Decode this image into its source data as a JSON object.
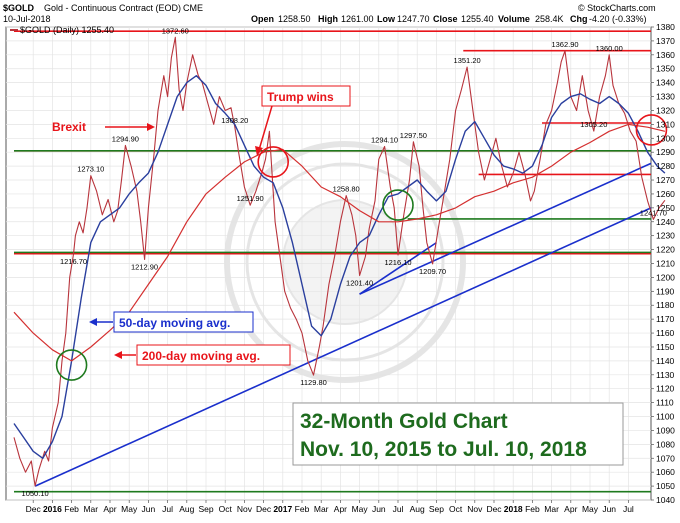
{
  "header": {
    "symbol": "$GOLD",
    "name": "Gold - Continuous Contract (EOD)",
    "exchange": "CME",
    "date": "10-Jul-2018",
    "legend": "$GOLD (Daily) 1255.40",
    "open_label": "Open",
    "open": "1258.50",
    "high_label": "High",
    "high": "1261.00",
    "low_label": "Low",
    "low": "1247.70",
    "close_label": "Close",
    "close": "1255.40",
    "volume_label": "Volume",
    "volume": "258.4K",
    "chg_label": "Chg",
    "chg": "-4.20 (-0.33%)",
    "brand": "© StockCharts.com"
  },
  "annotations": {
    "brexit": "Brexit",
    "trump": "Trump wins",
    "ma50": "50-day moving avg.",
    "ma200": "200-day moving avg.",
    "title_line1": "32-Month Gold Chart",
    "title_line2": "Nov. 10, 2015 to Jul. 10, 2018"
  },
  "colors": {
    "price": "#b8343c",
    "ma50": "#2a3f9e",
    "ma200": "#d43030",
    "red_line": "#e8141a",
    "green_line": "#1e7a1e",
    "blue_trend": "#1a2fcc",
    "annotation_green": "#1e6b1e"
  },
  "chart_data": {
    "type": "line",
    "ylim": [
      1040,
      1380
    ],
    "y_ticks": [
      1040,
      1050,
      1060,
      1070,
      1080,
      1090,
      1100,
      1110,
      1120,
      1130,
      1140,
      1150,
      1160,
      1170,
      1180,
      1190,
      1200,
      1210,
      1220,
      1230,
      1240,
      1250,
      1260,
      1270,
      1280,
      1290,
      1300,
      1310,
      1320,
      1330,
      1340,
      1350,
      1360,
      1370,
      1380
    ],
    "x_ticks": [
      "Dec",
      "2016",
      "Feb",
      "Mar",
      "Apr",
      "May",
      "Jun",
      "Jul",
      "Aug",
      "Sep",
      "Oct",
      "Nov",
      "Dec",
      "2017",
      "Feb",
      "Mar",
      "Apr",
      "May",
      "Jun",
      "Jul",
      "Aug",
      "Sep",
      "Oct",
      "Nov",
      "Dec",
      "2018",
      "Feb",
      "Mar",
      "Apr",
      "May",
      "Jun",
      "Jul"
    ],
    "x_tick_month_index": [
      1,
      2,
      3,
      4,
      5,
      6,
      7,
      8,
      9,
      10,
      11,
      12,
      13,
      14,
      15,
      16,
      17,
      18,
      19,
      20,
      21,
      22,
      23,
      24,
      25,
      26,
      27,
      28,
      29,
      30,
      31,
      32
    ],
    "series": [
      {
        "points": [
          [
            0,
            1085
          ],
          [
            0.3,
            1070
          ],
          [
            0.6,
            1060
          ],
          [
            0.9,
            1068
          ],
          [
            1.1,
            1050.1
          ],
          [
            1.3,
            1062
          ],
          [
            1.6,
            1075
          ],
          [
            1.8,
            1068
          ],
          [
            2.0,
            1092
          ],
          [
            2.3,
            1110
          ],
          [
            2.5,
            1140
          ],
          [
            2.7,
            1160
          ],
          [
            2.9,
            1200
          ],
          [
            3.1,
            1216.7
          ],
          [
            3.2,
            1230
          ],
          [
            3.4,
            1240
          ],
          [
            3.6,
            1232
          ],
          [
            3.8,
            1250
          ],
          [
            4.0,
            1273.1
          ],
          [
            4.3,
            1262
          ],
          [
            4.6,
            1245
          ],
          [
            4.9,
            1256
          ],
          [
            5.2,
            1240
          ],
          [
            5.4,
            1248
          ],
          [
            5.6,
            1270
          ],
          [
            5.8,
            1294.9
          ],
          [
            6.1,
            1280
          ],
          [
            6.4,
            1262
          ],
          [
            6.6,
            1240
          ],
          [
            6.8,
            1212.9
          ],
          [
            7.0,
            1250
          ],
          [
            7.3,
            1290
          ],
          [
            7.5,
            1320
          ],
          [
            7.8,
            1345
          ],
          [
            8.0,
            1330
          ],
          [
            8.2,
            1358
          ],
          [
            8.4,
            1372.6
          ],
          [
            8.6,
            1335
          ],
          [
            8.8,
            1320
          ],
          [
            9.0,
            1340
          ],
          [
            9.3,
            1360
          ],
          [
            9.6,
            1345
          ],
          [
            9.8,
            1340
          ],
          [
            10.1,
            1325
          ],
          [
            10.4,
            1310
          ],
          [
            10.7,
            1330
          ],
          [
            11.0,
            1320
          ],
          [
            11.3,
            1322
          ],
          [
            11.5,
            1308.2
          ],
          [
            11.7,
            1290
          ],
          [
            12.0,
            1265
          ],
          [
            12.3,
            1251.9
          ],
          [
            12.6,
            1262
          ],
          [
            12.9,
            1275
          ],
          [
            13.1,
            1285
          ],
          [
            13.3,
            1305
          ],
          [
            13.6,
            1240
          ],
          [
            13.9,
            1210
          ],
          [
            14.1,
            1190
          ],
          [
            14.4,
            1178
          ],
          [
            14.7,
            1170
          ],
          [
            15.0,
            1160
          ],
          [
            15.3,
            1140
          ],
          [
            15.6,
            1129.8
          ],
          [
            15.9,
            1150
          ],
          [
            16.1,
            1165
          ],
          [
            16.4,
            1195
          ],
          [
            16.7,
            1215
          ],
          [
            17.0,
            1240
          ],
          [
            17.3,
            1258.8
          ],
          [
            17.6,
            1245
          ],
          [
            17.8,
            1230
          ],
          [
            18.0,
            1201.4
          ],
          [
            18.3,
            1215
          ],
          [
            18.5,
            1235
          ],
          [
            18.8,
            1255
          ],
          [
            19.0,
            1285
          ],
          [
            19.3,
            1294.1
          ],
          [
            19.6,
            1265
          ],
          [
            19.8,
            1250
          ],
          [
            20.0,
            1216.1
          ],
          [
            20.3,
            1245
          ],
          [
            20.6,
            1270
          ],
          [
            20.8,
            1297.5
          ],
          [
            21.1,
            1280
          ],
          [
            21.3,
            1250
          ],
          [
            21.5,
            1225
          ],
          [
            21.8,
            1209.7
          ],
          [
            22.1,
            1235
          ],
          [
            22.4,
            1260
          ],
          [
            22.7,
            1285
          ],
          [
            23.0,
            1320
          ],
          [
            23.3,
            1335
          ],
          [
            23.6,
            1351.2
          ],
          [
            23.9,
            1320
          ],
          [
            24.2,
            1290
          ],
          [
            24.5,
            1270
          ],
          [
            24.8,
            1285
          ],
          [
            25.1,
            1300
          ],
          [
            25.4,
            1280
          ],
          [
            25.7,
            1265
          ],
          [
            26.0,
            1275
          ],
          [
            26.3,
            1290
          ],
          [
            26.6,
            1275
          ],
          [
            26.9,
            1255
          ],
          [
            27.1,
            1262
          ],
          [
            27.4,
            1285
          ],
          [
            27.7,
            1310
          ],
          [
            28.0,
            1320
          ],
          [
            28.3,
            1340
          ],
          [
            28.5,
            1355
          ],
          [
            28.7,
            1362.9
          ],
          [
            29.0,
            1330
          ],
          [
            29.3,
            1320
          ],
          [
            29.6,
            1345
          ],
          [
            29.9,
            1320
          ],
          [
            30.2,
            1305.2
          ],
          [
            30.5,
            1330
          ],
          [
            30.8,
            1345
          ],
          [
            31.0,
            1360
          ],
          [
            31.2,
            1338
          ],
          [
            31.5,
            1325
          ],
          [
            31.8,
            1318
          ],
          [
            32.1,
            1305
          ],
          [
            32.4,
            1298
          ],
          [
            32.7,
            1272
          ],
          [
            33.0,
            1255
          ],
          [
            33.3,
            1241.7
          ],
          [
            33.6,
            1250
          ],
          [
            33.9,
            1255.4
          ]
        ]
      },
      {
        "points": [
          [
            0,
            1095
          ],
          [
            0.5,
            1085
          ],
          [
            1.0,
            1075
          ],
          [
            1.5,
            1070
          ],
          [
            2.0,
            1082
          ],
          [
            2.5,
            1100
          ],
          [
            3.0,
            1140
          ],
          [
            3.5,
            1185
          ],
          [
            4.0,
            1225
          ],
          [
            4.5,
            1240
          ],
          [
            5.0,
            1245
          ],
          [
            5.5,
            1250
          ],
          [
            6.0,
            1260
          ],
          [
            6.5,
            1268
          ],
          [
            7.0,
            1275
          ],
          [
            7.5,
            1290
          ],
          [
            8.0,
            1310
          ],
          [
            8.5,
            1330
          ],
          [
            9.0,
            1340
          ],
          [
            9.5,
            1345
          ],
          [
            10.0,
            1338
          ],
          [
            10.5,
            1325
          ],
          [
            11.0,
            1318
          ],
          [
            11.5,
            1310
          ],
          [
            12.0,
            1295
          ],
          [
            12.5,
            1280
          ],
          [
            13.0,
            1272
          ],
          [
            13.5,
            1268
          ],
          [
            14.0,
            1250
          ],
          [
            14.5,
            1225
          ],
          [
            15.0,
            1195
          ],
          [
            15.5,
            1165
          ],
          [
            16.0,
            1158
          ],
          [
            16.5,
            1170
          ],
          [
            17.0,
            1195
          ],
          [
            17.5,
            1215
          ],
          [
            18.0,
            1225
          ],
          [
            18.5,
            1230
          ],
          [
            19.0,
            1245
          ],
          [
            19.5,
            1258
          ],
          [
            20.0,
            1260
          ],
          [
            20.5,
            1265
          ],
          [
            21.0,
            1270
          ],
          [
            21.5,
            1262
          ],
          [
            22.0,
            1255
          ],
          [
            22.5,
            1262
          ],
          [
            23.0,
            1285
          ],
          [
            23.5,
            1305
          ],
          [
            24.0,
            1312
          ],
          [
            24.5,
            1300
          ],
          [
            25.0,
            1288
          ],
          [
            25.5,
            1280
          ],
          [
            26.0,
            1278
          ],
          [
            26.5,
            1275
          ],
          [
            27.0,
            1280
          ],
          [
            27.5,
            1295
          ],
          [
            28.0,
            1315
          ],
          [
            28.5,
            1325
          ],
          [
            29.0,
            1330
          ],
          [
            29.5,
            1332
          ],
          [
            30.0,
            1328
          ],
          [
            30.5,
            1325
          ],
          [
            31.0,
            1330
          ],
          [
            31.5,
            1325
          ],
          [
            32.0,
            1318
          ],
          [
            32.5,
            1305
          ],
          [
            33.0,
            1290
          ],
          [
            33.5,
            1280
          ],
          [
            33.9,
            1275
          ]
        ]
      },
      {
        "points": [
          [
            0,
            1175
          ],
          [
            1.0,
            1160
          ],
          [
            2.0,
            1148
          ],
          [
            3.0,
            1140
          ],
          [
            4.0,
            1150
          ],
          [
            5.0,
            1162
          ],
          [
            6.0,
            1175
          ],
          [
            7.0,
            1195
          ],
          [
            8.0,
            1215
          ],
          [
            9.0,
            1240
          ],
          [
            10.0,
            1260
          ],
          [
            11.0,
            1272
          ],
          [
            12.0,
            1283
          ],
          [
            13.0,
            1290
          ],
          [
            14.0,
            1292
          ],
          [
            15.0,
            1280
          ],
          [
            16.0,
            1265
          ],
          [
            17.0,
            1258
          ],
          [
            18.0,
            1248
          ],
          [
            19.0,
            1240
          ],
          [
            20.0,
            1240
          ],
          [
            21.0,
            1242
          ],
          [
            22.0,
            1245
          ],
          [
            23.0,
            1250
          ],
          [
            24.0,
            1258
          ],
          [
            25.0,
            1262
          ],
          [
            26.0,
            1268
          ],
          [
            27.0,
            1272
          ],
          [
            28.0,
            1280
          ],
          [
            29.0,
            1290
          ],
          [
            30.0,
            1297
          ],
          [
            31.0,
            1305
          ],
          [
            32.0,
            1310
          ],
          [
            33.0,
            1308
          ],
          [
            33.9,
            1305
          ]
        ]
      }
    ],
    "price_labels": [
      {
        "text": "1050.10",
        "x": 1.1,
        "y": 1050.1
      },
      {
        "text": "1216.70",
        "x": 3.1,
        "y": 1216.7
      },
      {
        "text": "1273.10",
        "x": 4.0,
        "y": 1273.1
      },
      {
        "text": "1294.90",
        "x": 5.8,
        "y": 1294.9
      },
      {
        "text": "1212.90",
        "x": 6.8,
        "y": 1212.9
      },
      {
        "text": "1372.60",
        "x": 8.4,
        "y": 1372.6
      },
      {
        "text": "1308.20",
        "x": 11.5,
        "y": 1308.2
      },
      {
        "text": "1251.90",
        "x": 12.3,
        "y": 1251.9
      },
      {
        "text": "1129.80",
        "x": 15.6,
        "y": 1129.8
      },
      {
        "text": "1258.80",
        "x": 17.3,
        "y": 1258.8
      },
      {
        "text": "1201.40",
        "x": 18.0,
        "y": 1201.4
      },
      {
        "text": "1294.10",
        "x": 19.3,
        "y": 1294.1
      },
      {
        "text": "1216.10",
        "x": 20.0,
        "y": 1216.1
      },
      {
        "text": "1297.50",
        "x": 20.8,
        "y": 1297.5
      },
      {
        "text": "1209.70",
        "x": 21.8,
        "y": 1209.7
      },
      {
        "text": "1351.20",
        "x": 23.6,
        "y": 1351.2
      },
      {
        "text": "1305.20",
        "x": 30.2,
        "y": 1305.2
      },
      {
        "text": "1362.90",
        "x": 28.7,
        "y": 1362.9
      },
      {
        "text": "1360.00",
        "x": 31.0,
        "y": 1360.0
      },
      {
        "text": "1241.70",
        "x": 33.3,
        "y": 1241.7
      }
    ],
    "horizontal_lines": [
      {
        "color": "red",
        "y": 1377,
        "x_from": 0,
        "x_to": 34
      },
      {
        "color": "red",
        "y": 1363,
        "x_from": 23.4,
        "x_to": 34
      },
      {
        "color": "red",
        "y": 1311,
        "x_from": 27.5,
        "x_to": 34
      },
      {
        "color": "red",
        "y": 1291,
        "x_from": 0,
        "x_to": 34
      },
      {
        "color": "red",
        "y": 1274,
        "x_from": 24.2,
        "x_to": 34
      },
      {
        "color": "red",
        "y": 1217,
        "x_from": 0,
        "x_to": 34
      },
      {
        "color": "green",
        "y": 1291,
        "x_from": 0,
        "x_to": 34
      },
      {
        "color": "green",
        "y": 1242,
        "x_from": 20.5,
        "x_to": 34
      },
      {
        "color": "green",
        "y": 1218,
        "x_from": 0,
        "x_to": 34
      },
      {
        "color": "green",
        "y": 1046,
        "x_from": 0,
        "x_to": 34
      }
    ],
    "trend_lines": [
      {
        "x1": 1.1,
        "y1": 1050,
        "x2": 34,
        "y2": 1250
      },
      {
        "x1": 18.0,
        "y1": 1188,
        "x2": 34,
        "y2": 1282
      },
      {
        "x1": 18.0,
        "y1": 1188,
        "x2": 22.0,
        "y2": 1225
      }
    ],
    "circles": [
      {
        "color": "green",
        "x": 3.0,
        "y": 1137
      },
      {
        "color": "red",
        "x": 13.5,
        "y": 1283
      },
      {
        "color": "green",
        "x": 20.0,
        "y": 1252
      },
      {
        "color": "red",
        "x": 33.2,
        "y": 1306
      }
    ]
  }
}
